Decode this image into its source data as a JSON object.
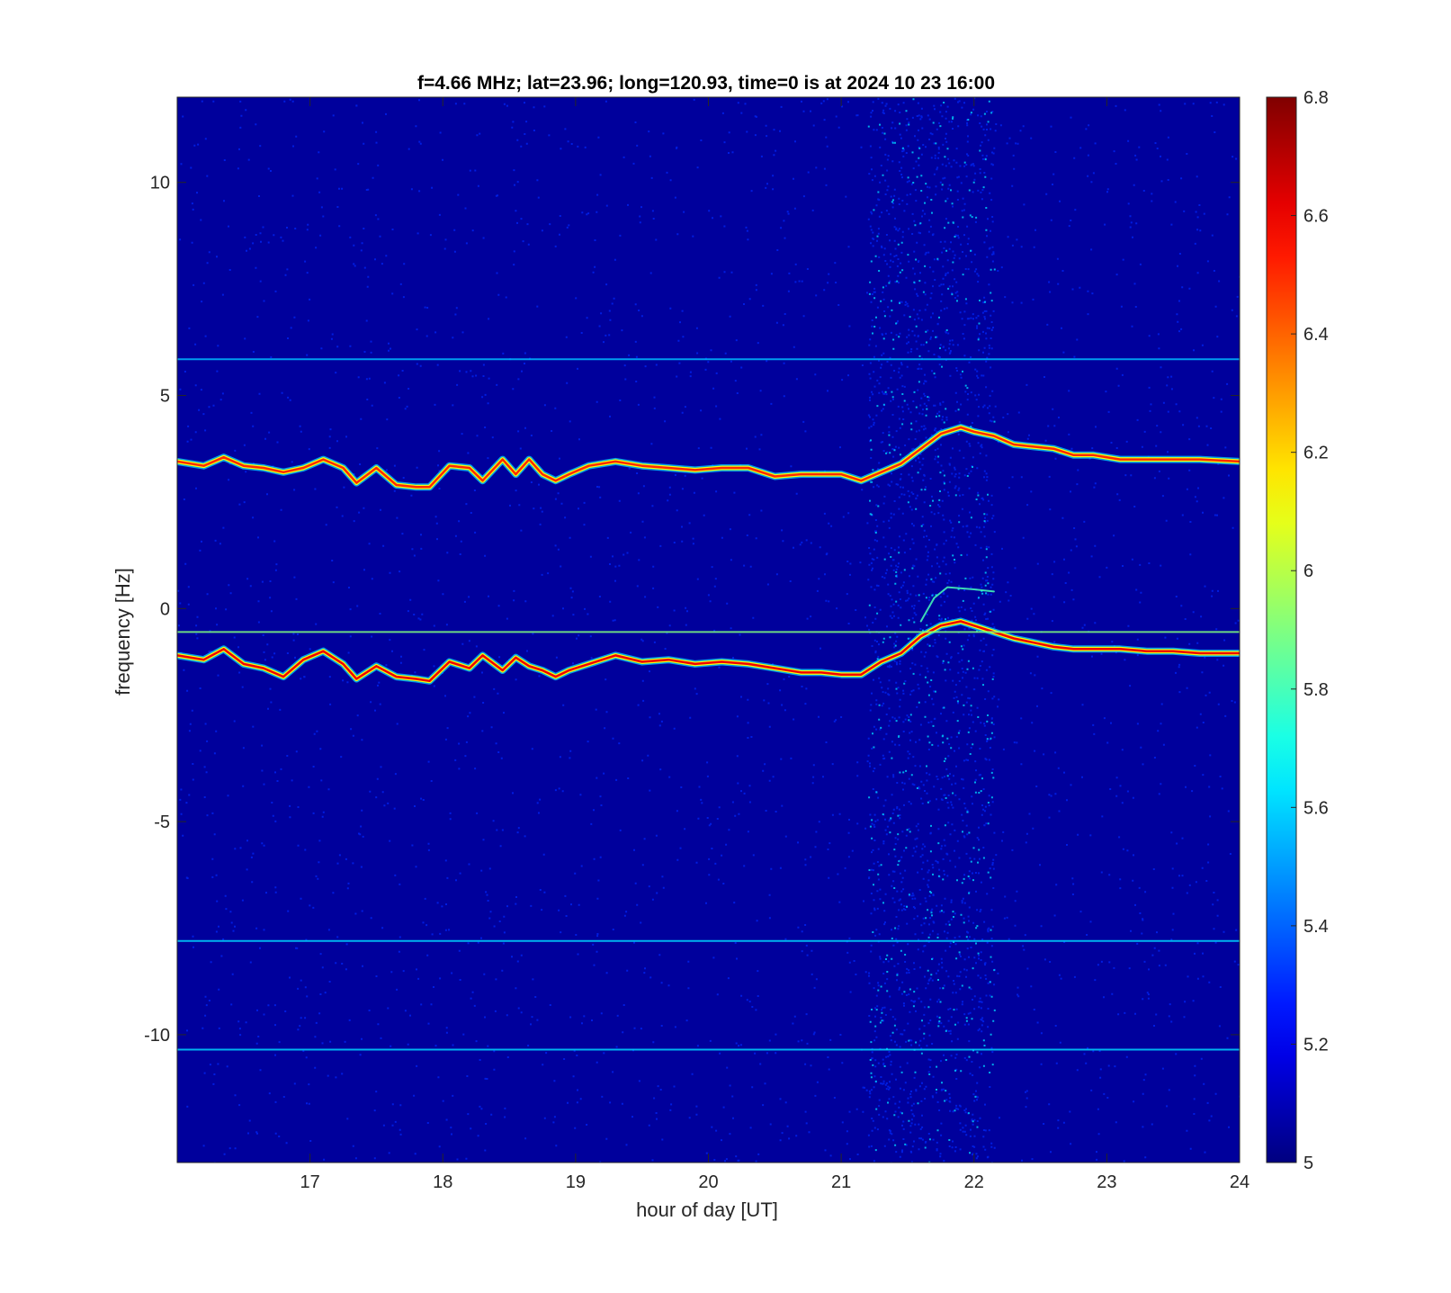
{
  "chart_data": {
    "type": "heatmap",
    "title": "f=4.66 MHz;  lat=23.96; long=120.93, time=0 is at 2024 10 23 16:00",
    "xlabel": "hour of day [UT]",
    "ylabel": "frequency [Hz]",
    "xlim": [
      16,
      24
    ],
    "ylim": [
      -13,
      12
    ],
    "x_ticks": [
      17,
      18,
      19,
      20,
      21,
      22,
      23,
      24
    ],
    "x_tick_labels": [
      "17",
      "18",
      "19",
      "20",
      "21",
      "22",
      "23",
      "24"
    ],
    "y_ticks": [
      10,
      5,
      0,
      -5,
      -10
    ],
    "y_tick_labels": [
      "10",
      "5",
      "0",
      "-5",
      "-10"
    ],
    "colorbar": {
      "colormap": "jet",
      "clim": [
        5,
        6.8
      ],
      "ticks": [
        5,
        5.2,
        5.4,
        5.6,
        5.8,
        6,
        6.2,
        6.4,
        6.6,
        6.8
      ],
      "tick_labels": [
        "5",
        "5.2",
        "5.4",
        "5.6",
        "5.8",
        "6",
        "6.2",
        "6.4",
        "6.6",
        "6.8"
      ]
    },
    "background_level": 5.05,
    "noisy_band_hours": [
      21.2,
      22.15
    ],
    "grid": false,
    "series": [
      {
        "trace": "upper-doppler-trace",
        "level": 6.5,
        "x": [
          16.0,
          16.2,
          16.35,
          16.5,
          16.65,
          16.8,
          16.95,
          17.1,
          17.25,
          17.35,
          17.5,
          17.65,
          17.8,
          17.9,
          18.05,
          18.2,
          18.3,
          18.45,
          18.55,
          18.65,
          18.75,
          18.85,
          18.95,
          19.1,
          19.3,
          19.5,
          19.7,
          19.9,
          20.1,
          20.3,
          20.5,
          20.7,
          20.85,
          21.0,
          21.15,
          21.3,
          21.45,
          21.6,
          21.75,
          21.9,
          22.0,
          22.15,
          22.3,
          22.45,
          22.6,
          22.75,
          22.9,
          23.1,
          23.3,
          23.5,
          23.7,
          24.0
        ],
        "y": [
          3.45,
          3.35,
          3.55,
          3.35,
          3.3,
          3.2,
          3.3,
          3.5,
          3.3,
          2.95,
          3.3,
          2.9,
          2.85,
          2.85,
          3.35,
          3.3,
          3.0,
          3.5,
          3.15,
          3.5,
          3.15,
          3.0,
          3.15,
          3.35,
          3.45,
          3.35,
          3.3,
          3.25,
          3.3,
          3.3,
          3.1,
          3.15,
          3.15,
          3.15,
          3.0,
          3.2,
          3.4,
          3.75,
          4.1,
          4.25,
          4.15,
          4.05,
          3.85,
          3.8,
          3.75,
          3.6,
          3.6,
          3.5,
          3.5,
          3.5,
          3.5,
          3.45
        ]
      },
      {
        "trace": "lower-doppler-trace",
        "level": 6.6,
        "x": [
          16.0,
          16.2,
          16.35,
          16.5,
          16.65,
          16.8,
          16.95,
          17.1,
          17.25,
          17.35,
          17.5,
          17.65,
          17.8,
          17.9,
          18.05,
          18.2,
          18.3,
          18.45,
          18.55,
          18.65,
          18.75,
          18.85,
          18.95,
          19.1,
          19.3,
          19.5,
          19.7,
          19.9,
          20.1,
          20.3,
          20.5,
          20.7,
          20.85,
          21.0,
          21.15,
          21.3,
          21.45,
          21.6,
          21.75,
          21.9,
          22.0,
          22.15,
          22.3,
          22.45,
          22.6,
          22.75,
          22.9,
          23.1,
          23.3,
          23.5,
          23.7,
          24.0
        ],
        "y": [
          -1.1,
          -1.2,
          -0.95,
          -1.3,
          -1.4,
          -1.6,
          -1.2,
          -1.0,
          -1.3,
          -1.65,
          -1.35,
          -1.6,
          -1.65,
          -1.7,
          -1.25,
          -1.4,
          -1.1,
          -1.45,
          -1.15,
          -1.35,
          -1.45,
          -1.6,
          -1.45,
          -1.3,
          -1.1,
          -1.25,
          -1.2,
          -1.3,
          -1.25,
          -1.3,
          -1.4,
          -1.5,
          -1.5,
          -1.55,
          -1.55,
          -1.25,
          -1.05,
          -0.65,
          -0.4,
          -0.3,
          -0.4,
          -0.55,
          -0.7,
          -0.8,
          -0.9,
          -0.95,
          -0.95,
          -0.95,
          -1.0,
          -1.0,
          -1.05,
          -1.05
        ]
      },
      {
        "trace": "carrier-line",
        "level": 5.9,
        "x": [
          16.0,
          24.0
        ],
        "y": [
          -0.55,
          -0.55
        ]
      },
      {
        "trace": "short-feature",
        "level": 5.8,
        "x": [
          21.6,
          21.7,
          21.8,
          22.0,
          22.15
        ],
        "y": [
          -0.3,
          0.25,
          0.5,
          0.45,
          0.4
        ]
      },
      {
        "trace": "interference-line-upper",
        "level": 5.55,
        "x": [
          16.0,
          24.0
        ],
        "y": [
          5.85,
          5.85
        ]
      },
      {
        "trace": "interference-line-mid",
        "level": 5.6,
        "x": [
          16.0,
          24.0
        ],
        "y": [
          -7.8,
          -7.8
        ]
      },
      {
        "trace": "interference-line-lower",
        "level": 5.6,
        "x": [
          16.0,
          24.0
        ],
        "y": [
          -10.35,
          -10.35
        ]
      }
    ]
  }
}
